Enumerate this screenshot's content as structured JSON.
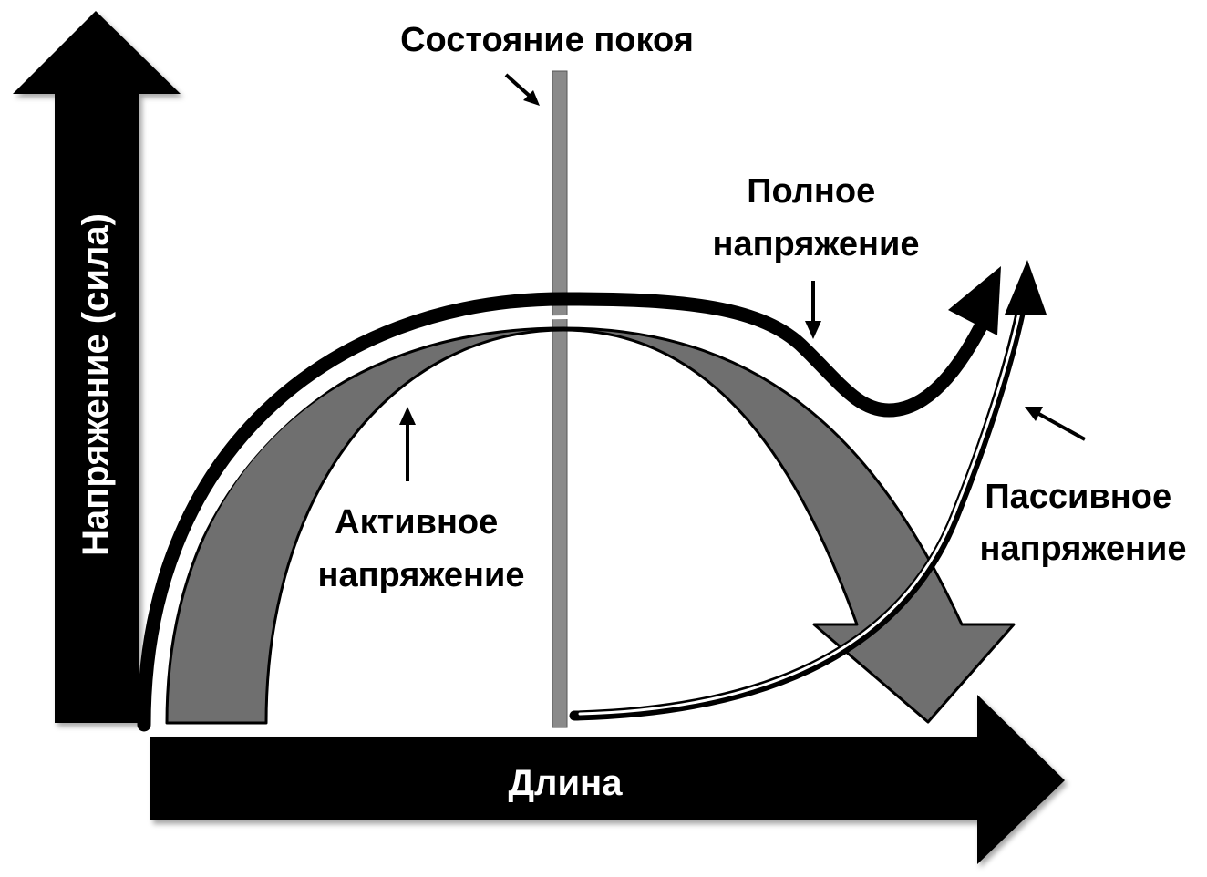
{
  "diagram": {
    "y_axis_label": "Напряжение (сила)",
    "x_axis_label": "Длина",
    "resting_state_label": "Состояние покоя",
    "total_tension_label": [
      "Полное",
      "напряжение"
    ],
    "active_tension_label": [
      "Активное",
      "напряжение"
    ],
    "passive_tension_label": [
      "Пассивное",
      "напряжение"
    ]
  },
  "colors": {
    "background": "#ffffff",
    "axis_fill": "#000000",
    "active_arch_fill": "#6f6f6f",
    "resting_line": "#8a8a8a",
    "curve_stroke": "#000000"
  }
}
